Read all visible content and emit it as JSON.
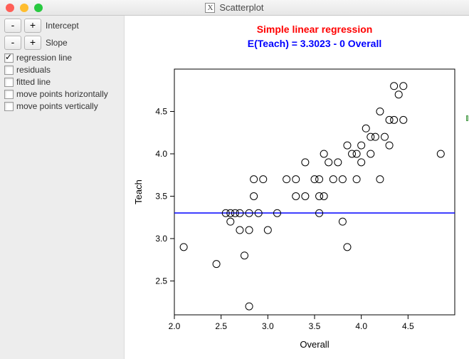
{
  "window": {
    "title": "Scatterplot",
    "traffic_colors": {
      "close": "#ff5f57",
      "min": "#ffbd2e",
      "max": "#28c940"
    }
  },
  "sidebar": {
    "spinners": [
      {
        "label": "Intercept",
        "minus": "-",
        "plus": "+"
      },
      {
        "label": "Slope",
        "minus": "-",
        "plus": "+"
      }
    ],
    "checks": [
      {
        "label": "regression line",
        "checked": true
      },
      {
        "label": "residuals",
        "checked": false
      },
      {
        "label": "fitted line",
        "checked": false
      },
      {
        "label": "move points horizontally",
        "checked": false
      },
      {
        "label": "move points vertically",
        "checked": false
      }
    ]
  },
  "chart": {
    "type": "scatter",
    "title1": "Simple linear regression",
    "title1_color": "#ff0000",
    "title2": "E(Teach) = 3.3023 - 0 Overall",
    "title2_color": "#0000ff",
    "xlabel": "Overall",
    "ylabel": "Teach",
    "xlim": [
      2.0,
      5.0
    ],
    "ylim": [
      2.1,
      5.0
    ],
    "xticks": [
      2.0,
      2.5,
      3.0,
      3.5,
      4.0,
      4.5
    ],
    "yticks": [
      2.5,
      3.0,
      3.5,
      4.0,
      4.5
    ],
    "background_color": "#ffffff",
    "axis_box_color": "#000000",
    "tick_font_size": 12,
    "label_font_size": 13,
    "title_font_size": 14,
    "marker": {
      "shape": "circle",
      "size": 5,
      "stroke": "#000000",
      "fill": "none",
      "stroke_width": 1
    },
    "regression": {
      "intercept": 3.3023,
      "slope": 0,
      "color": "#0000ff",
      "width": 1.5
    },
    "points": [
      [
        2.1,
        2.9
      ],
      [
        2.45,
        2.7
      ],
      [
        2.55,
        3.3
      ],
      [
        2.6,
        3.2
      ],
      [
        2.6,
        3.3
      ],
      [
        2.65,
        3.3
      ],
      [
        2.7,
        3.3
      ],
      [
        2.7,
        3.1
      ],
      [
        2.75,
        2.8
      ],
      [
        2.8,
        3.1
      ],
      [
        2.8,
        3.3
      ],
      [
        2.8,
        2.2
      ],
      [
        2.85,
        3.5
      ],
      [
        2.85,
        3.7
      ],
      [
        2.9,
        3.3
      ],
      [
        2.95,
        3.7
      ],
      [
        3.0,
        3.1
      ],
      [
        3.1,
        3.3
      ],
      [
        3.2,
        3.7
      ],
      [
        3.3,
        3.7
      ],
      [
        3.3,
        3.5
      ],
      [
        3.4,
        3.5
      ],
      [
        3.4,
        3.9
      ],
      [
        3.5,
        3.7
      ],
      [
        3.55,
        3.3
      ],
      [
        3.55,
        3.5
      ],
      [
        3.55,
        3.7
      ],
      [
        3.6,
        3.5
      ],
      [
        3.6,
        4.0
      ],
      [
        3.65,
        3.9
      ],
      [
        3.7,
        3.7
      ],
      [
        3.75,
        3.9
      ],
      [
        3.8,
        3.2
      ],
      [
        3.8,
        3.7
      ],
      [
        3.85,
        2.9
      ],
      [
        3.85,
        4.1
      ],
      [
        3.9,
        4.0
      ],
      [
        3.95,
        3.7
      ],
      [
        3.95,
        4.0
      ],
      [
        4.0,
        4.1
      ],
      [
        4.0,
        3.9
      ],
      [
        4.05,
        4.3
      ],
      [
        4.1,
        4.0
      ],
      [
        4.1,
        4.2
      ],
      [
        4.15,
        4.2
      ],
      [
        4.2,
        3.7
      ],
      [
        4.2,
        4.5
      ],
      [
        4.25,
        4.2
      ],
      [
        4.3,
        4.1
      ],
      [
        4.3,
        4.4
      ],
      [
        4.35,
        4.4
      ],
      [
        4.35,
        4.8
      ],
      [
        4.4,
        4.7
      ],
      [
        4.45,
        4.4
      ],
      [
        4.45,
        4.8
      ],
      [
        4.85,
        4.0
      ]
    ]
  }
}
